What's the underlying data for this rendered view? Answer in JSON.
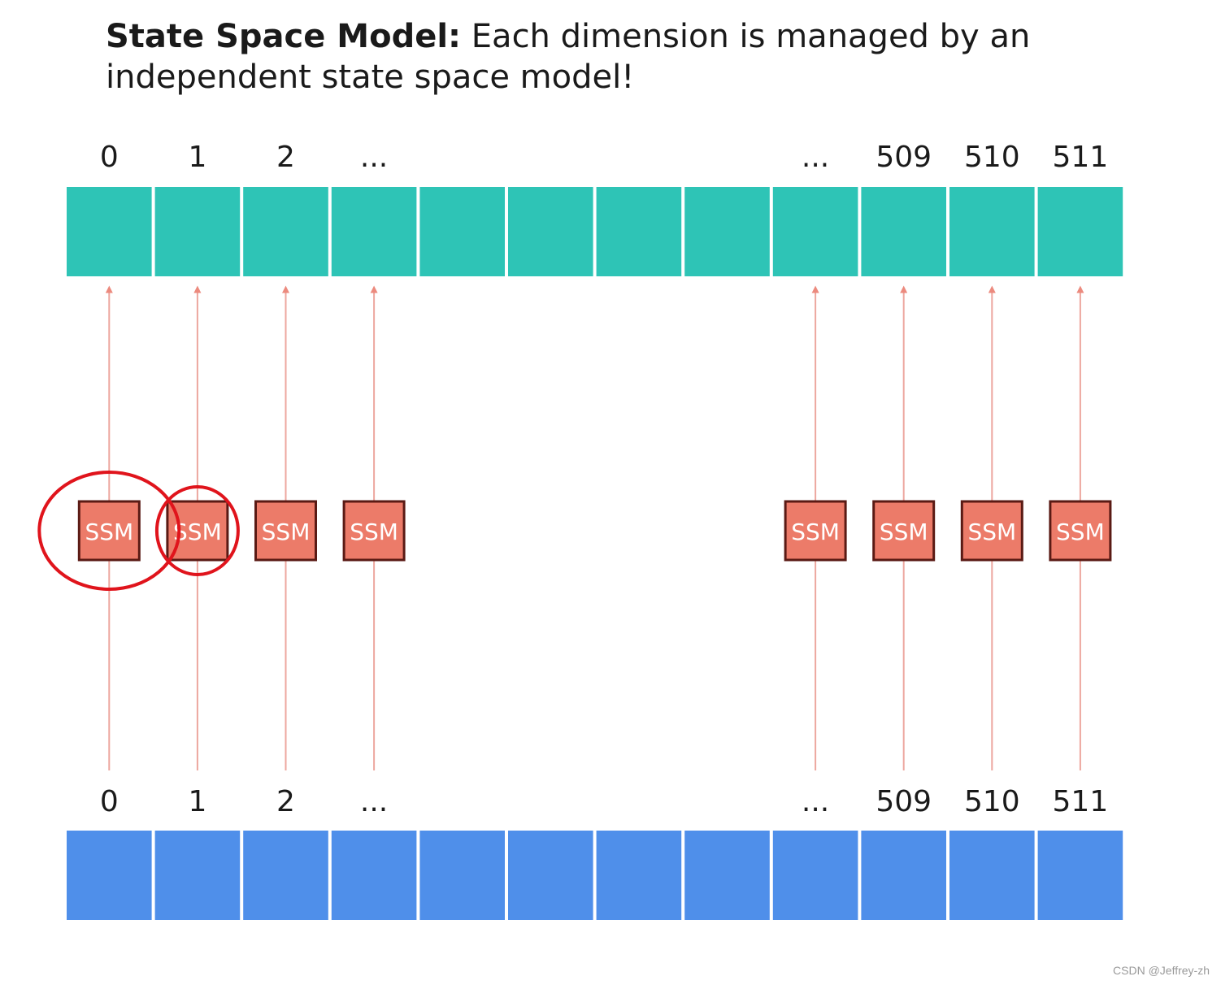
{
  "title": {
    "bold": "State Space Model:",
    "rest": "Each dimension is managed by an independent state space model!"
  },
  "columns": [
    {
      "label": "0",
      "has_ssm": true,
      "circled": true
    },
    {
      "label": "1",
      "has_ssm": true,
      "circled": true
    },
    {
      "label": "2",
      "has_ssm": true,
      "circled": false
    },
    {
      "label": "...",
      "has_ssm": true,
      "circled": false
    },
    {
      "label": "",
      "has_ssm": false,
      "circled": false
    },
    {
      "label": "",
      "has_ssm": false,
      "circled": false
    },
    {
      "label": "",
      "has_ssm": false,
      "circled": false
    },
    {
      "label": "",
      "has_ssm": false,
      "circled": false
    },
    {
      "label": "...",
      "has_ssm": true,
      "circled": false
    },
    {
      "label": "509",
      "has_ssm": true,
      "circled": false
    },
    {
      "label": "510",
      "has_ssm": true,
      "circled": false
    },
    {
      "label": "511",
      "has_ssm": true,
      "circled": false
    }
  ],
  "ssm_label": "SSM",
  "colors": {
    "top_cell": "#2ec4b6",
    "bottom_cell": "#4f8fea",
    "ssm_fill": "#ec7b69",
    "ssm_border": "#5a1a14",
    "arrow": "#eda79f",
    "annotation": "#e0141c"
  },
  "watermark": "CSDN @Jeffrey-zh"
}
